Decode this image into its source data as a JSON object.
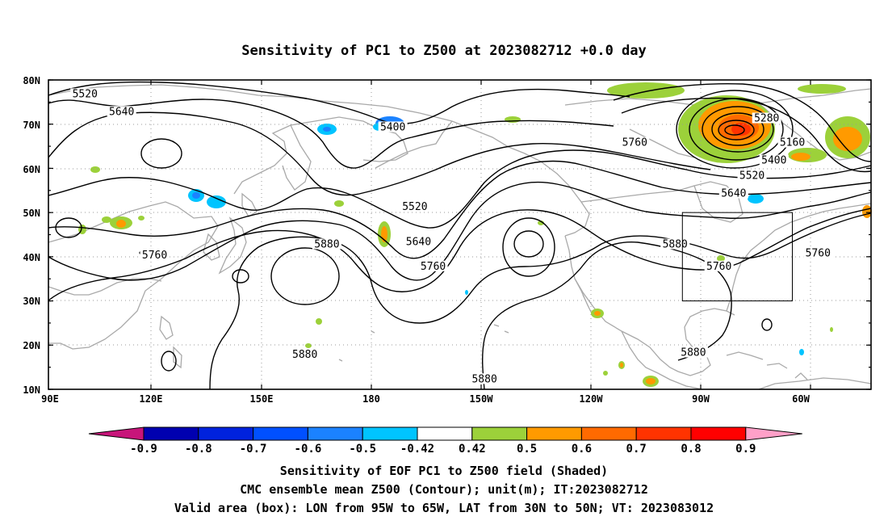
{
  "title": "Sensitivity of PC1 to Z500 at 2023082712 +0.0 day",
  "map": {
    "lat_labels": [
      "80N",
      "70N",
      "60N",
      "50N",
      "40N",
      "30N",
      "20N",
      "10N"
    ],
    "lon_labels": [
      "90E",
      "120E",
      "150E",
      "180",
      "150W",
      "120W",
      "90W",
      "60W"
    ],
    "contour_labels": [
      {
        "text": "5520",
        "lon": 102,
        "lat": 77
      },
      {
        "text": "5640",
        "lon": 112,
        "lat": 73
      },
      {
        "text": "5400",
        "lon": 186,
        "lat": 69.5
      },
      {
        "text": "5520",
        "lon": 192,
        "lat": 51.5
      },
      {
        "text": "5640",
        "lon": 193,
        "lat": 43.5
      },
      {
        "text": "5760",
        "lon": 121,
        "lat": 40.5
      },
      {
        "text": "5880",
        "lon": 168,
        "lat": 43
      },
      {
        "text": "5760",
        "lon": 197,
        "lat": 38
      },
      {
        "text": "5760",
        "lon": 275,
        "lat": 38
      },
      {
        "text": "5760",
        "lon": 252,
        "lat": 66
      },
      {
        "text": "5880",
        "lon": 263,
        "lat": 43
      },
      {
        "text": "5280",
        "lon": 288,
        "lat": 71.5
      },
      {
        "text": "5160",
        "lon": 295,
        "lat": 66
      },
      {
        "text": "5400",
        "lon": 290,
        "lat": 62
      },
      {
        "text": "5520",
        "lon": 284,
        "lat": 58.5
      },
      {
        "text": "5640",
        "lon": 279,
        "lat": 54.5
      },
      {
        "text": "5760",
        "lon": 302,
        "lat": 41
      },
      {
        "text": "5880",
        "lon": 162,
        "lat": 18
      },
      {
        "text": "5880",
        "lon": 211,
        "lat": 12.5
      },
      {
        "text": "5880",
        "lon": 268,
        "lat": 18.5
      }
    ],
    "valid_box": {
      "lon_min": 265,
      "lon_max": 295,
      "lat_min": 30,
      "lat_max": 50
    }
  },
  "colorbar": {
    "labels": [
      "-0.9",
      "-0.8",
      "-0.7",
      "-0.6",
      "-0.5",
      "-0.42",
      "0.42",
      "0.5",
      "0.6",
      "0.7",
      "0.8",
      "0.9"
    ],
    "colors": [
      "#c7157a",
      "#0000b0",
      "#0022dd",
      "#0050ff",
      "#1b82ff",
      "#00c4ff",
      "#ffffff",
      "#9cd13a",
      "#ff9a00",
      "#ff6a00",
      "#ff3300",
      "#ff0000",
      "#ffa0c8"
    ]
  },
  "captions": {
    "line1": "Sensitivity of EOF PC1 to Z500 field (Shaded)",
    "line2": "CMC ensemble mean Z500 (Contour); unit(m); IT:2023082712",
    "line3": "Valid area (box): LON from 95W to 65W, LAT from 30N to 50N; VT: 2023083012"
  }
}
